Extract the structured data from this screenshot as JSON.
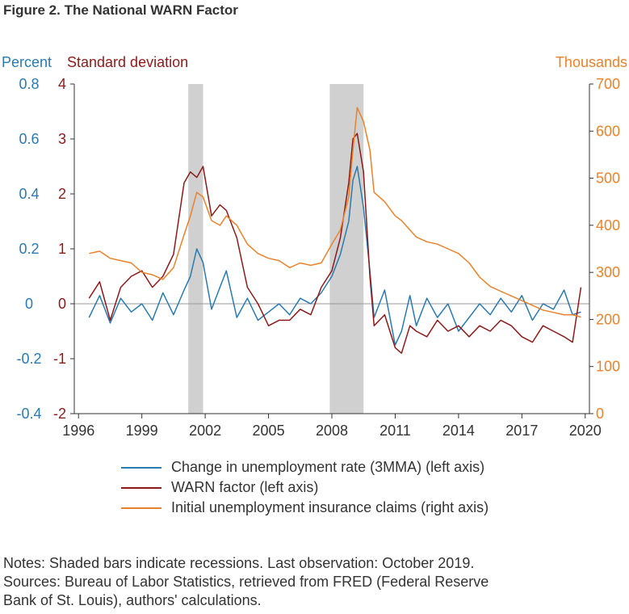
{
  "figure": {
    "title": "Figure 2. The National WARN Factor"
  },
  "legend": [
    {
      "label": "Change in unemployment rate (3MMA) (left axis)",
      "color": "#2a7ab0"
    },
    {
      "label": "WARN factor (left axis)",
      "color": "#8b1a1a"
    },
    {
      "label": "Initial unemployment insurance claims (right axis)",
      "color": "#e8822a"
    }
  ],
  "notes": [
    "Notes: Shaded bars indicate recessions. Last observation: October 2019.",
    "Sources: Bureau of Labor Statistics, retrieved from FRED (Federal Reserve",
    "Bank of St. Louis), authors' calculations."
  ],
  "chart_data": {
    "type": "line",
    "xlim": [
      1995.8,
      2020.2
    ],
    "x_ticks": [
      "1996",
      "1999",
      "2002",
      "2005",
      "2008",
      "2011",
      "2014",
      "2017",
      "2020"
    ],
    "axes": {
      "left_percent": {
        "label": "Percent",
        "ylim": [
          -0.4,
          0.8
        ],
        "ticks": [
          "0.8",
          "0.6",
          "0.4",
          "0.2",
          "0",
          "-0.2",
          "-0.4"
        ],
        "color": "#2a7ab0"
      },
      "left_std": {
        "label": "Standard deviation",
        "ylim": [
          -2,
          4
        ],
        "ticks": [
          "4",
          "3",
          "2",
          "1",
          "0",
          "-1",
          "-2"
        ],
        "color": "#8b1a1a"
      },
      "right_thousands": {
        "label": "Thousands",
        "ylim": [
          0,
          700
        ],
        "ticks": [
          "700",
          "600",
          "500",
          "400",
          "300",
          "200",
          "100",
          "0"
        ],
        "color": "#e8822a"
      }
    },
    "recessions": [
      [
        2001.2,
        2001.9
      ],
      [
        2007.9,
        2009.5
      ]
    ],
    "series": [
      {
        "name": "Change in unemployment rate (3MMA) (left axis)",
        "axis": "left_percent",
        "color": "#2a7ab0",
        "x": [
          1996.5,
          1997.0,
          1997.5,
          1998.0,
          1998.5,
          1999.0,
          1999.5,
          2000.0,
          2000.5,
          2001.0,
          2001.3,
          2001.6,
          2001.9,
          2002.3,
          2002.7,
          2003.0,
          2003.5,
          2004.0,
          2004.5,
          2005.0,
          2005.5,
          2006.0,
          2006.5,
          2007.0,
          2007.5,
          2008.0,
          2008.4,
          2008.8,
          2009.0,
          2009.2,
          2009.5,
          2009.8,
          2010.0,
          2010.5,
          2011.0,
          2011.3,
          2011.7,
          2012.0,
          2012.5,
          2013.0,
          2013.5,
          2014.0,
          2014.5,
          2015.0,
          2015.5,
          2016.0,
          2016.5,
          2017.0,
          2017.5,
          2018.0,
          2018.5,
          2019.0,
          2019.4,
          2019.8
        ],
        "y": [
          -0.05,
          0.03,
          -0.07,
          0.02,
          -0.03,
          0.0,
          -0.06,
          0.04,
          -0.04,
          0.05,
          0.1,
          0.2,
          0.15,
          -0.02,
          0.06,
          0.12,
          -0.05,
          0.02,
          -0.06,
          -0.03,
          0.0,
          -0.04,
          0.02,
          0.0,
          0.04,
          0.1,
          0.18,
          0.3,
          0.45,
          0.5,
          0.35,
          0.12,
          -0.05,
          0.05,
          -0.15,
          -0.1,
          0.03,
          -0.08,
          0.02,
          -0.05,
          0.0,
          -0.1,
          -0.05,
          0.0,
          -0.04,
          0.02,
          -0.03,
          0.03,
          -0.06,
          0.0,
          -0.02,
          0.05,
          -0.04,
          -0.03
        ]
      },
      {
        "name": "WARN factor (left axis)",
        "axis": "left_std",
        "color": "#8b1a1a",
        "x": [
          1996.5,
          1997.0,
          1997.5,
          1998.0,
          1998.5,
          1999.0,
          1999.5,
          2000.0,
          2000.5,
          2001.0,
          2001.3,
          2001.6,
          2001.9,
          2002.3,
          2002.7,
          2003.0,
          2003.5,
          2004.0,
          2004.5,
          2005.0,
          2005.5,
          2006.0,
          2006.5,
          2007.0,
          2007.5,
          2008.0,
          2008.4,
          2008.8,
          2009.0,
          2009.2,
          2009.5,
          2009.8,
          2010.0,
          2010.5,
          2011.0,
          2011.3,
          2011.7,
          2012.0,
          2012.5,
          2013.0,
          2013.5,
          2014.0,
          2014.5,
          2015.0,
          2015.5,
          2016.0,
          2016.5,
          2017.0,
          2017.5,
          2018.0,
          2018.5,
          2019.0,
          2019.4,
          2019.8
        ],
        "y": [
          0.1,
          0.4,
          -0.3,
          0.3,
          0.5,
          0.6,
          0.3,
          0.5,
          0.9,
          2.2,
          2.4,
          2.3,
          2.5,
          1.6,
          1.8,
          1.7,
          1.2,
          0.3,
          0.0,
          -0.4,
          -0.3,
          -0.3,
          -0.1,
          -0.2,
          0.3,
          0.6,
          1.2,
          2.2,
          3.0,
          3.1,
          2.4,
          0.5,
          -0.4,
          -0.2,
          -0.8,
          -0.9,
          -0.4,
          -0.5,
          -0.6,
          -0.3,
          -0.5,
          -0.4,
          -0.6,
          -0.4,
          -0.5,
          -0.3,
          -0.4,
          -0.6,
          -0.7,
          -0.4,
          -0.5,
          -0.6,
          -0.7,
          0.3
        ]
      },
      {
        "name": "Initial unemployment insurance claims (right axis)",
        "axis": "right_thousands",
        "color": "#e8822a",
        "x": [
          1996.5,
          1997.0,
          1997.5,
          1998.0,
          1998.5,
          1999.0,
          1999.5,
          2000.0,
          2000.5,
          2001.0,
          2001.3,
          2001.6,
          2001.9,
          2002.3,
          2002.7,
          2003.0,
          2003.5,
          2004.0,
          2004.5,
          2005.0,
          2005.5,
          2006.0,
          2006.5,
          2007.0,
          2007.5,
          2008.0,
          2008.4,
          2008.8,
          2009.0,
          2009.2,
          2009.5,
          2009.8,
          2010.0,
          2010.5,
          2011.0,
          2011.3,
          2011.7,
          2012.0,
          2012.5,
          2013.0,
          2013.5,
          2014.0,
          2014.5,
          2015.0,
          2015.5,
          2016.0,
          2016.5,
          2017.0,
          2017.5,
          2018.0,
          2018.5,
          2019.0,
          2019.4,
          2019.8
        ],
        "y": [
          340,
          345,
          330,
          325,
          320,
          300,
          295,
          285,
          310,
          380,
          420,
          470,
          460,
          410,
          400,
          420,
          400,
          360,
          340,
          330,
          325,
          310,
          320,
          315,
          320,
          360,
          390,
          460,
          560,
          650,
          620,
          560,
          470,
          450,
          420,
          410,
          390,
          375,
          365,
          360,
          350,
          340,
          320,
          290,
          270,
          260,
          250,
          240,
          230,
          220,
          215,
          210,
          210,
          205
        ]
      }
    ]
  }
}
